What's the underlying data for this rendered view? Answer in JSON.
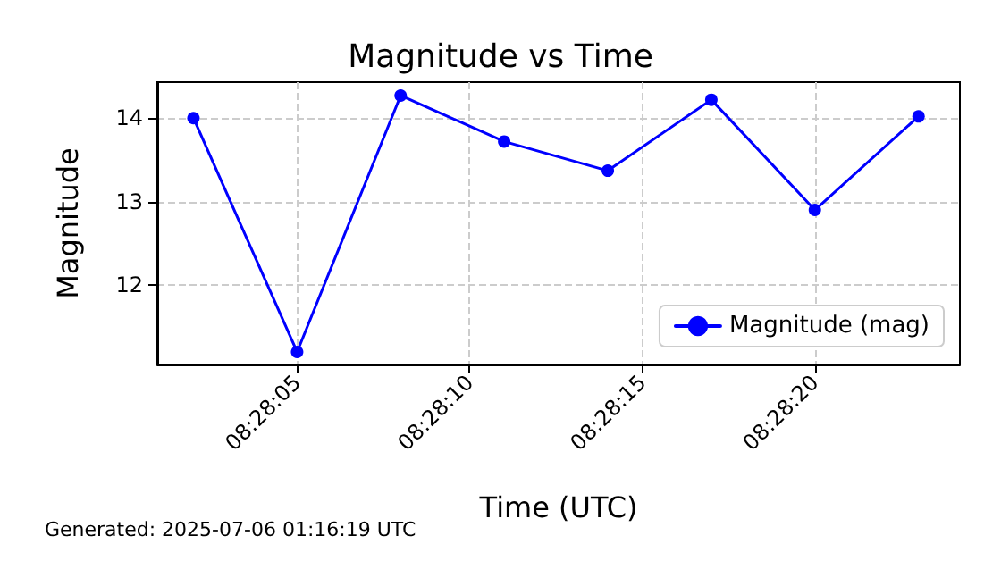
{
  "chart_data": {
    "type": "line",
    "title": "Magnitude vs Time",
    "xlabel": "Time (UTC)",
    "ylabel": "Magnitude",
    "x": [
      8.467222,
      8.468056,
      8.468889,
      8.469722,
      8.470556,
      8.471389,
      8.472222,
      8.473056
    ],
    "series": [
      {
        "name": "Magnitude (mag)",
        "color": "#0000ff",
        "values": [
          14.0,
          11.2,
          14.27,
          13.72,
          13.37,
          14.22,
          12.9,
          14.02
        ]
      }
    ],
    "xlim": [
      8.466931,
      8.473389
    ],
    "xticks": [
      {
        "value": 8.468056,
        "label": "08:28:05"
      },
      {
        "value": 8.469444,
        "label": "08:28:10"
      },
      {
        "value": 8.470833,
        "label": "08:28:15"
      },
      {
        "value": 8.472222,
        "label": "08:28:20"
      }
    ],
    "ylim": [
      11.05,
      14.43
    ],
    "yticks": [
      12,
      13,
      14
    ],
    "grid": true,
    "legend": "bottom right",
    "marker": "circle",
    "line_style": "solid",
    "annotations": [
      "Generated: 2025-07-06 01:16:19 UTC"
    ]
  }
}
